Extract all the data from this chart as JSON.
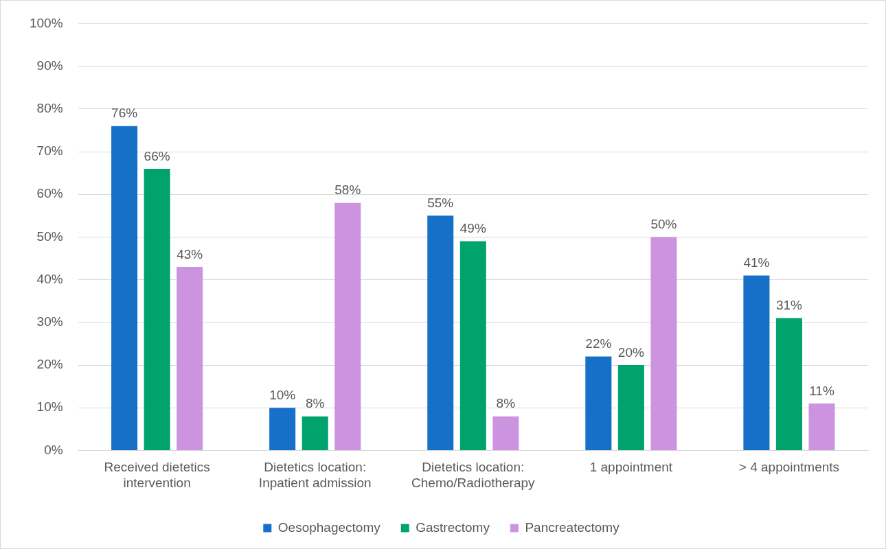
{
  "chart_data": {
    "type": "bar",
    "categories": [
      "Received dietetics intervention",
      "Dietetics location: Inpatient admission",
      "Dietetics location: Chemo/Radiotherapy",
      "1 appointment",
      "> 4 appointments"
    ],
    "series": [
      {
        "name": "Oesophagectomy",
        "color": "#1670c8",
        "values": [
          76,
          10,
          55,
          22,
          41
        ],
        "value_labels": [
          "76%",
          "10%",
          "55%",
          "22%",
          "41%"
        ]
      },
      {
        "name": "Gastrectomy",
        "color": "#00a36b",
        "values": [
          66,
          8,
          49,
          20,
          31
        ],
        "value_labels": [
          "66%",
          "8%",
          "49%",
          "20%",
          "31%"
        ]
      },
      {
        "name": "Pancreatectomy",
        "color": "#cc94e0",
        "values": [
          43,
          58,
          8,
          50,
          11
        ],
        "value_labels": [
          "43%",
          "58%",
          "8%",
          "50%",
          "11%"
        ]
      }
    ],
    "ylim": [
      0,
      100
    ],
    "yticks": [
      {
        "value": 0,
        "label": "0%"
      },
      {
        "value": 10,
        "label": "10%"
      },
      {
        "value": 20,
        "label": "20%"
      },
      {
        "value": 30,
        "label": "30%"
      },
      {
        "value": 40,
        "label": "40%"
      },
      {
        "value": 50,
        "label": "50%"
      },
      {
        "value": 60,
        "label": "60%"
      },
      {
        "value": 70,
        "label": "70%"
      },
      {
        "value": 80,
        "label": "80%"
      },
      {
        "value": 90,
        "label": "90%"
      },
      {
        "value": 100,
        "label": "100%"
      }
    ],
    "grid": "y",
    "legend": "bottom"
  }
}
